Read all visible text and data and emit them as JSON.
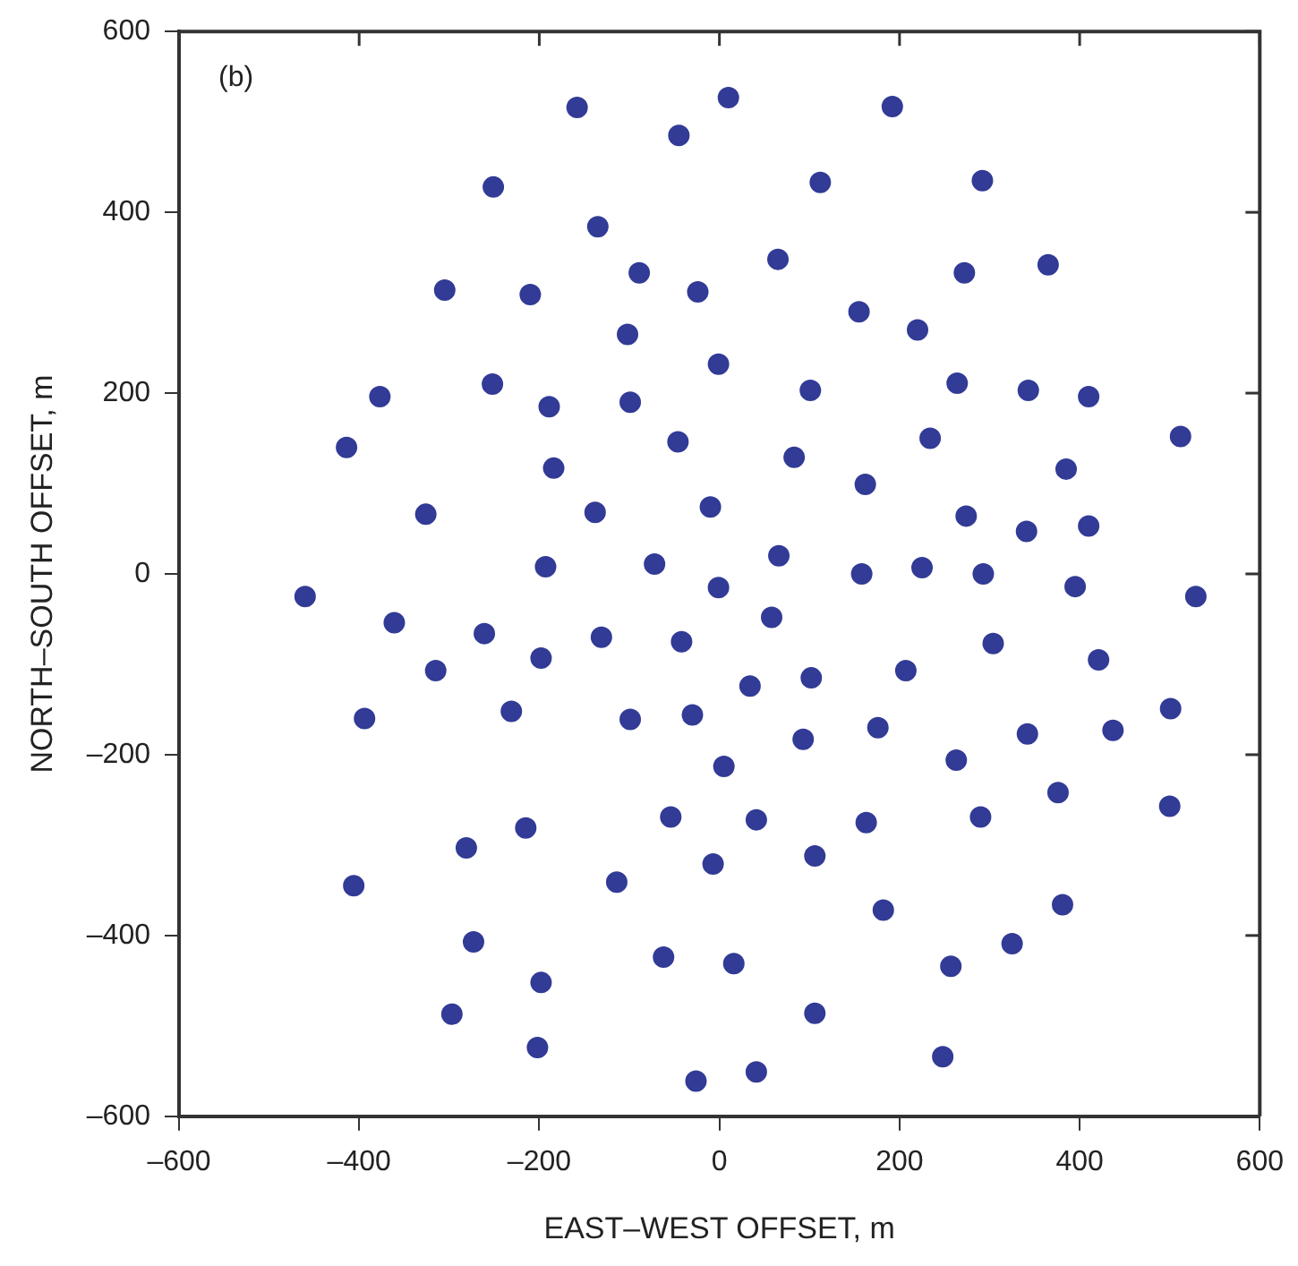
{
  "chart_data": {
    "type": "scatter",
    "xlabel": "EAST–WEST OFFSET, m",
    "ylabel": "NORTH–SOUTH OFFSET, m",
    "annotations": [
      "(b)"
    ],
    "xlim": [
      -600,
      600
    ],
    "ylim": [
      -600,
      600
    ],
    "xticks": [
      {
        "value": -600,
        "label": "–600"
      },
      {
        "value": -400,
        "label": "–400"
      },
      {
        "value": -200,
        "label": "–200"
      },
      0,
      200,
      400,
      600
    ],
    "yticks": [
      {
        "value": -600,
        "label": "–600"
      },
      {
        "value": -400,
        "label": "–400"
      },
      {
        "value": -200,
        "label": "–200"
      },
      0,
      200,
      400,
      600
    ],
    "grid": false,
    "legend": false,
    "marker": "circle",
    "series": [
      {
        "color": "#323b96",
        "x": [
          -158,
          10,
          -45,
          -251,
          -135,
          -89,
          -305,
          -210,
          -24,
          -102,
          -1,
          -377,
          -252,
          -189,
          -99,
          -414,
          -46,
          -184,
          -326,
          -138,
          -10,
          -193,
          -72,
          192,
          112,
          292,
          65,
          272,
          365,
          155,
          220,
          101,
          264,
          343,
          410,
          512,
          83,
          234,
          162,
          385,
          274,
          341,
          410,
          66,
          158,
          225,
          293,
          395,
          -1,
          529,
          58,
          304,
          421,
          34,
          102,
          207,
          501,
          93,
          176,
          342,
          437,
          5,
          263,
          376,
          41,
          163,
          290,
          500,
          -7,
          106,
          182,
          381,
          16,
          257,
          325,
          106,
          248,
          41,
          -460,
          -361,
          -261,
          -131,
          -42,
          -315,
          -198,
          -394,
          -231,
          -99,
          -30,
          -54,
          -215,
          -281,
          -406,
          -114,
          -273,
          -62,
          -198,
          -297,
          -202,
          -26
        ],
        "values": [
          516,
          527,
          485,
          428,
          384,
          333,
          314,
          309,
          312,
          265,
          232,
          196,
          210,
          185,
          190,
          140,
          146,
          117,
          66,
          68,
          74,
          8,
          11,
          517,
          433,
          435,
          348,
          333,
          342,
          290,
          270,
          203,
          211,
          203,
          196,
          152,
          129,
          150,
          99,
          116,
          64,
          47,
          53,
          20,
          0,
          7,
          0,
          -14,
          -15,
          -25,
          -48,
          -77,
          -95,
          -124,
          -115,
          -107,
          -149,
          -183,
          -170,
          -177,
          -173,
          -213,
          -206,
          -242,
          -272,
          -275,
          -269,
          -257,
          -321,
          -312,
          -372,
          -366,
          -431,
          -434,
          -409,
          -486,
          -534,
          -551,
          -25,
          -54,
          -66,
          -70,
          -75,
          -107,
          -93,
          -160,
          -152,
          -161,
          -156,
          -269,
          -281,
          -303,
          -345,
          -341,
          -407,
          -424,
          -452,
          -487,
          -524,
          -561
        ]
      }
    ]
  }
}
